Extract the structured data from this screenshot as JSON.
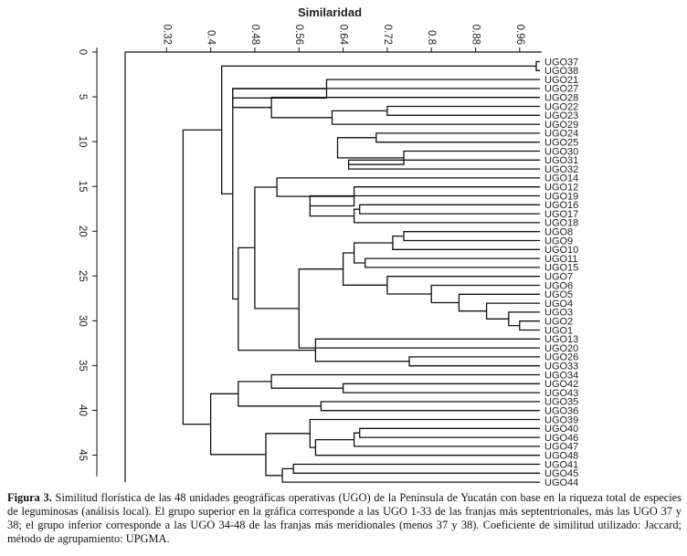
{
  "chart_data": {
    "type": "dendrogram",
    "title": "Similaridad",
    "axis_ticks_top": [
      "0.32",
      "0.4",
      "0.48",
      "0.56",
      "0.64",
      "0.72",
      "0.8",
      "0.88",
      "0.96"
    ],
    "axis_range_top": [
      0.245,
      1.0
    ],
    "axis_ticks_left": [
      "0",
      "5",
      "10",
      "15",
      "20",
      "25",
      "30",
      "35",
      "40",
      "45"
    ],
    "axis_range_left": [
      0,
      48
    ],
    "leaves": [
      "UGO37",
      "UGO38",
      "UGO21",
      "UGO27",
      "UGO28",
      "UGO22",
      "UGO23",
      "UGO29",
      "UGO24",
      "UGO25",
      "UGO30",
      "UGO31",
      "UGO32",
      "UGO14",
      "UGO12",
      "UGO19",
      "UGO16",
      "UGO17",
      "UGO18",
      "UGO8",
      "UGO9",
      "UGO10",
      "UGO11",
      "UGO15",
      "UGO7",
      "UGO6",
      "UGO5",
      "UGO4",
      "UGO3",
      "UGO2",
      "UGO1",
      "UGO13",
      "UGO20",
      "UGO26",
      "UGO33",
      "UGO34",
      "UGO42",
      "UGO43",
      "UGO35",
      "UGO36",
      "UGO39",
      "UGO40",
      "UGO46",
      "UGO47",
      "UGO48",
      "UGO41",
      "UGO45",
      "UGO44"
    ],
    "merges": [
      {
        "a": "UGO37",
        "b": "UGO38",
        "sim": 0.99
      },
      {
        "a": "UGO22",
        "b": "UGO23",
        "sim": 0.72
      },
      {
        "a": "UGO24",
        "b": "UGO25",
        "sim": 0.7
      },
      {
        "a": "UGO31",
        "b": "UGO32",
        "sim": 0.65
      },
      {
        "a": "UGO30",
        "b": "c4",
        "sim": 0.75
      },
      {
        "a": "c3",
        "b": "c5",
        "sim": 0.63
      },
      {
        "a": "c2",
        "b": "UGO29",
        "sim": 0.62
      },
      {
        "a": "UGO28",
        "b": "c7",
        "sim": 0.51
      },
      {
        "a": "UGO27",
        "b": "c8",
        "sim": 0.44
      },
      {
        "a": "UGO21",
        "b": "c9",
        "sim": 0.61
      },
      {
        "a": "UGO16",
        "b": "UGO17",
        "sim": 0.67
      },
      {
        "a": "c11",
        "b": "UGO18",
        "sim": 0.66
      },
      {
        "a": "UGO19",
        "b": "c12",
        "sim": 0.58
      },
      {
        "a": "UGO12",
        "b": "c13",
        "sim": 0.66
      },
      {
        "a": "UGO14",
        "b": "c14",
        "sim": 0.52
      },
      {
        "a": "UGO8",
        "b": "UGO9",
        "sim": 0.75
      },
      {
        "a": "c16",
        "b": "UGO10",
        "sim": 0.73
      },
      {
        "a": "UGO11",
        "b": "UGO15",
        "sim": 0.68
      },
      {
        "a": "c17",
        "b": "c18",
        "sim": 0.66
      },
      {
        "a": "UGO2",
        "b": "UGO1",
        "sim": 0.96
      },
      {
        "a": "UGO3",
        "b": "c20",
        "sim": 0.94
      },
      {
        "a": "UGO4",
        "b": "c21",
        "sim": 0.9
      },
      {
        "a": "UGO5",
        "b": "c22",
        "sim": 0.85
      },
      {
        "a": "UGO6",
        "b": "c23",
        "sim": 0.8
      },
      {
        "a": "UGO7",
        "b": "c24",
        "sim": 0.72
      },
      {
        "a": "c19",
        "b": "c25",
        "sim": 0.64
      },
      {
        "a": "c26",
        "b": "UGO20",
        "sim": 0.56
      },
      {
        "a": "c15",
        "b": "c27",
        "sim": 0.48
      },
      {
        "a": "UGO26",
        "b": "UGO33",
        "sim": 0.76
      },
      {
        "a": "UGO13",
        "b": "c29",
        "sim": 0.59
      },
      {
        "a": "c28",
        "b": "c30",
        "sim": 0.45
      },
      {
        "a": "c10",
        "b": "c31",
        "sim": 0.44
      },
      {
        "a": "c1",
        "b": "c32",
        "sim": 0.42
      },
      {
        "a": "UGO42",
        "b": "UGO43",
        "sim": 0.64
      },
      {
        "a": "UGO34",
        "b": "c34",
        "sim": 0.51
      },
      {
        "a": "UGO35",
        "b": "UGO36",
        "sim": 0.6
      },
      {
        "a": "c35",
        "b": "c36",
        "sim": 0.45
      },
      {
        "a": "UGO40",
        "b": "UGO46",
        "sim": 0.67
      },
      {
        "a": "c38",
        "b": "UGO47",
        "sim": 0.66
      },
      {
        "a": "UGO48",
        "b": "c39",
        "sim": 0.59
      },
      {
        "a": "UGO39",
        "b": "c40",
        "sim": 0.58
      },
      {
        "a": "UGO41",
        "b": "UGO45",
        "sim": 0.55
      },
      {
        "a": "c42",
        "b": "UGO44",
        "sim": 0.53
      },
      {
        "a": "c41",
        "b": "c43",
        "sim": 0.5
      },
      {
        "a": "c37",
        "b": "c44",
        "sim": 0.4
      },
      {
        "a": "c33",
        "b": "c45",
        "sim": 0.35
      }
    ]
  },
  "caption": {
    "label": "Figura 3.",
    "text": " Similitud florística de las 48 unidades geográficas operativas (UGO) de la Península de Yucatán con base en la riqueza total de especies de leguminosas (análisis local). El grupo superior en la gráfica corresponde a las UGO 1-33 de las franjas más septentrionales, más las UGO 37 y 38; el grupo inferior corresponde a las UGO 34-48 de las franjas más meridionales (menos 37 y 38). Coeficiente de similitud utilizado: Jaccard; método de agrupamiento: UPGMA."
  }
}
